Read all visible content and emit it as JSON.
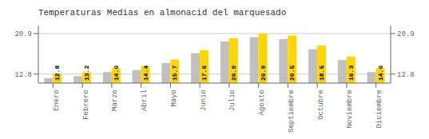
{
  "chart_data": {
    "type": "bar",
    "title": "Temperaturas Medias en almonacid del marquesado",
    "categories": [
      "Enero",
      "Febrero",
      "Marzo",
      "Abril",
      "Mayo",
      "Junio",
      "Julio",
      "Agosto",
      "Septiembre",
      "Octubre",
      "Noviembre",
      "Diciembre"
    ],
    "series": [
      {
        "color": "#C0C0C0",
        "values": [
          12.0,
          12.4,
          13.2,
          13.6,
          15.0,
          17.0,
          19.3,
          20.2,
          19.8,
          17.8,
          15.6,
          13.2
        ]
      },
      {
        "color": "#FFD700",
        "values": [
          12.8,
          13.2,
          14.0,
          14.4,
          15.7,
          17.6,
          20.0,
          20.9,
          20.5,
          18.5,
          16.3,
          14.0
        ],
        "data_labels": true,
        "value_labels": [
          "12.8",
          "13.2",
          "14.0",
          "14.4",
          "15.7",
          "17.6",
          "20.0",
          "20.9",
          "20.5",
          "18.5",
          "16.3",
          "14.0"
        ]
      }
    ],
    "ylim": [
      11.0,
      22.5
    ],
    "yticks": [
      12.8,
      20.9
    ],
    "y2lim": [
      11.0,
      22.5
    ],
    "y2ticks": [
      12.8,
      20.9
    ],
    "grid": true
  }
}
